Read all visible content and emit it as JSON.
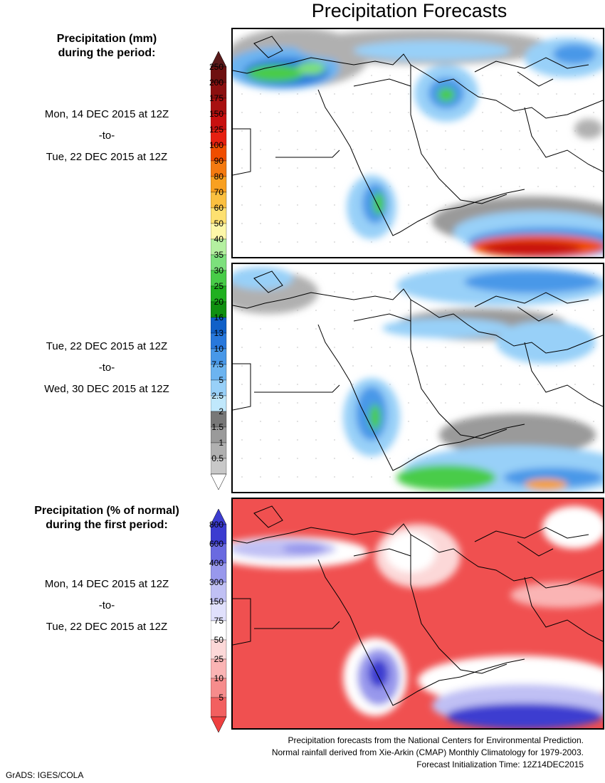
{
  "title": "Precipitation Forecasts",
  "section1": {
    "heading_line1": "Precipitation (mm)",
    "heading_line2": "during the period:",
    "start": "Mon, 14 DEC 2015 at 12Z",
    "to": "-to-",
    "end": "Tue, 22 DEC 2015 at 12Z"
  },
  "section2": {
    "start": "Tue, 22 DEC 2015 at 12Z",
    "to": "-to-",
    "end": "Wed, 30 DEC 2015 at 12Z"
  },
  "section3": {
    "heading_line1": "Precipitation (% of normal)",
    "heading_line2": "during the first period:",
    "start": "Mon, 14 DEC 2015 at 12Z",
    "to": "-to-",
    "end": "Tue, 22 DEC 2015 at 12Z"
  },
  "precip_scale": {
    "labels": [
      "250",
      "200",
      "175",
      "150",
      "125",
      "100",
      "90",
      "80",
      "70",
      "60",
      "50",
      "40",
      "35",
      "30",
      "25",
      "20",
      "16",
      "13",
      "10",
      "7.5",
      "5",
      "2.5",
      "2",
      "1.5",
      "1",
      "0.5"
    ],
    "colors": [
      "#6e1010",
      "#8c1010",
      "#a81010",
      "#c81010",
      "#e62010",
      "#f04d00",
      "#f47a10",
      "#f8a020",
      "#fbc040",
      "#fde070",
      "#fdf7a8",
      "#b4f0a0",
      "#7ce07c",
      "#48cc48",
      "#20b020",
      "#109010",
      "#1060c8",
      "#2878dc",
      "#4898e8",
      "#6cb4f0",
      "#98d0f8",
      "#c0e8fc",
      "#787878",
      "#9a9a9a",
      "#b0b0b0",
      "#c8c8c8"
    ],
    "top_arrow_color": "#5a1a1a",
    "bottom_arrow_color": "#ffffff"
  },
  "percent_scale": {
    "labels": [
      "800",
      "600",
      "400",
      "300",
      "150",
      "75",
      "50",
      "25",
      "10",
      "5"
    ],
    "colors": [
      "#3c3cd0",
      "#6a6ae0",
      "#9898ec",
      "#c0c0f4",
      "#e0e0fc",
      "#ffffff",
      "#fcd8d8",
      "#fab4b4",
      "#f68c8c",
      "#f26060"
    ],
    "top_arrow_color": "#3c3cd0",
    "bottom_arrow_color": "#ee4040"
  },
  "footer": {
    "line1": "Precipitation forecasts from the National Centers for Environmental Prediction.",
    "line2": "Normal rainfall derived from Xie-Arkin (CMAP) Monthly Climatology for 1979-2003.",
    "line3": "Forecast Initialization Time: 12Z14DEC2015"
  },
  "credit": "GrADS: IGES/COLA"
}
